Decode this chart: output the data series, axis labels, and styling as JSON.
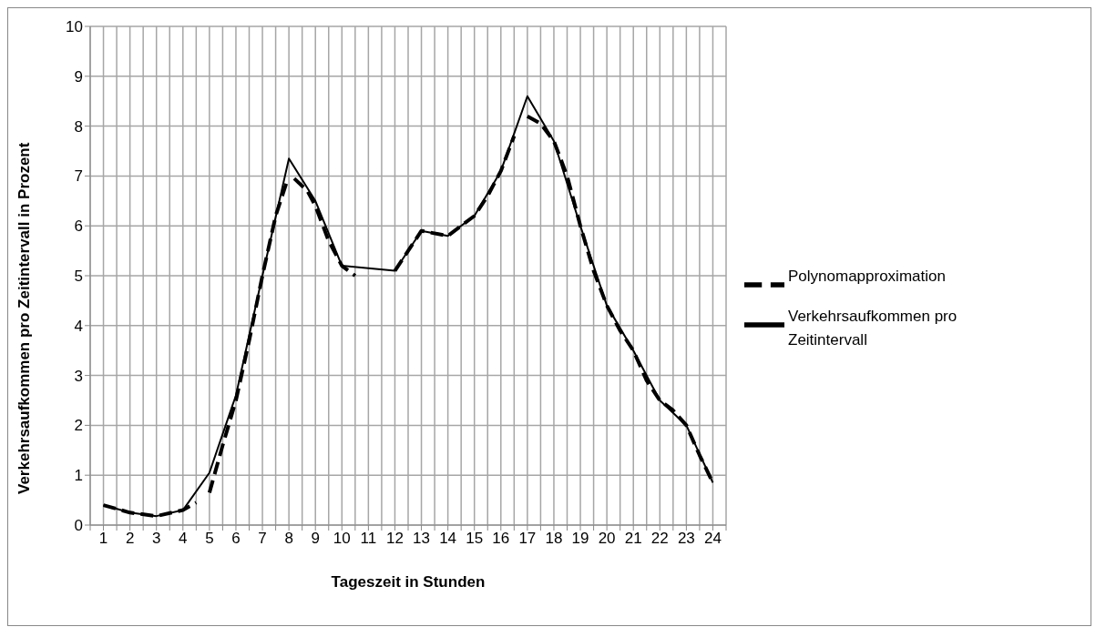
{
  "chart_data": {
    "type": "line",
    "xlabel": "Tageszeit in Stunden",
    "ylabel": "Verkehrsaufkommen pro Zeitintervall in Prozent",
    "xlim": [
      0.5,
      24.5
    ],
    "xticks": [
      {
        "value": 0.5,
        "label": null
      },
      1,
      {
        "value": 1.5,
        "label": null
      },
      2,
      {
        "value": 2.5,
        "label": null
      },
      3,
      {
        "value": 3.5,
        "label": null
      },
      4,
      {
        "value": 4.5,
        "label": null
      },
      5,
      {
        "value": 5.5,
        "label": null
      },
      6,
      {
        "value": 6.5,
        "label": null
      },
      7,
      {
        "value": 7.5,
        "label": null
      },
      8,
      {
        "value": 8.5,
        "label": null
      },
      9,
      {
        "value": 9.5,
        "label": null
      },
      10,
      {
        "value": 10.5,
        "label": null
      },
      11,
      {
        "value": 11.5,
        "label": null
      },
      12,
      {
        "value": 12.5,
        "label": null
      },
      13,
      {
        "value": 13.5,
        "label": null
      },
      14,
      {
        "value": 14.5,
        "label": null
      },
      15,
      {
        "value": 15.5,
        "label": null
      },
      16,
      {
        "value": 16.5,
        "label": null
      },
      17,
      {
        "value": 17.5,
        "label": null
      },
      18,
      {
        "value": 18.5,
        "label": null
      },
      19,
      {
        "value": 19.5,
        "label": null
      },
      20,
      {
        "value": 20.5,
        "label": null
      },
      21,
      {
        "value": 21.5,
        "label": null
      },
      22,
      {
        "value": 22.5,
        "label": null
      },
      23,
      {
        "value": 23.5,
        "label": null
      },
      24,
      {
        "value": 24.5,
        "label": null
      }
    ],
    "ylim": [
      0,
      10
    ],
    "yticks": [
      0,
      1,
      2,
      3,
      4,
      5,
      6,
      7,
      8,
      9,
      10
    ],
    "grid": true,
    "legend": "right",
    "series": [
      {
        "name": "Verkehrsaufkommen pro Zeitintervall",
        "color": "#000000",
        "line_style": "solid",
        "x": [
          1,
          2,
          3,
          4,
          5,
          6,
          7,
          8,
          9,
          10,
          11,
          12,
          13,
          14,
          15,
          16,
          17,
          18,
          19,
          20,
          21,
          22,
          23,
          24
        ],
        "values": [
          0.4,
          0.25,
          0.18,
          0.3,
          1.05,
          2.6,
          5.0,
          7.35,
          6.5,
          5.2,
          5.15,
          5.1,
          5.9,
          5.8,
          6.2,
          7.1,
          8.6,
          7.7,
          6.0,
          4.4,
          3.5,
          2.5,
          2.0,
          0.85
        ]
      },
      {
        "name": "Polynomapproximation",
        "color": "#000000",
        "line_style": "dashed",
        "x": [
          1,
          2,
          3,
          4,
          4.5,
          4.75,
          5,
          5.5,
          6,
          6.5,
          7,
          7.5,
          7.9,
          8.05,
          8.2,
          8.7,
          9,
          9.5,
          10,
          10.5,
          11.2,
          12,
          12.5,
          13,
          14,
          15,
          15.5,
          16,
          16.5,
          16.75,
          17,
          17.5,
          18,
          18.5,
          19,
          19.5,
          20,
          20.5,
          21,
          21.5,
          22,
          22.5,
          23,
          23.5,
          24
        ],
        "values": [
          0.4,
          0.25,
          0.18,
          0.3,
          0.45,
          null,
          0.65,
          1.6,
          2.5,
          3.7,
          5.0,
          6.2,
          6.85,
          null,
          6.95,
          6.7,
          6.4,
          5.7,
          5.2,
          5.0,
          null,
          5.1,
          5.5,
          5.9,
          5.8,
          6.2,
          6.6,
          7.1,
          7.8,
          null,
          8.2,
          8.05,
          7.7,
          7.0,
          6.0,
          5.1,
          4.4,
          3.9,
          3.5,
          2.9,
          2.5,
          2.3,
          2.0,
          1.4,
          0.85
        ]
      }
    ]
  }
}
